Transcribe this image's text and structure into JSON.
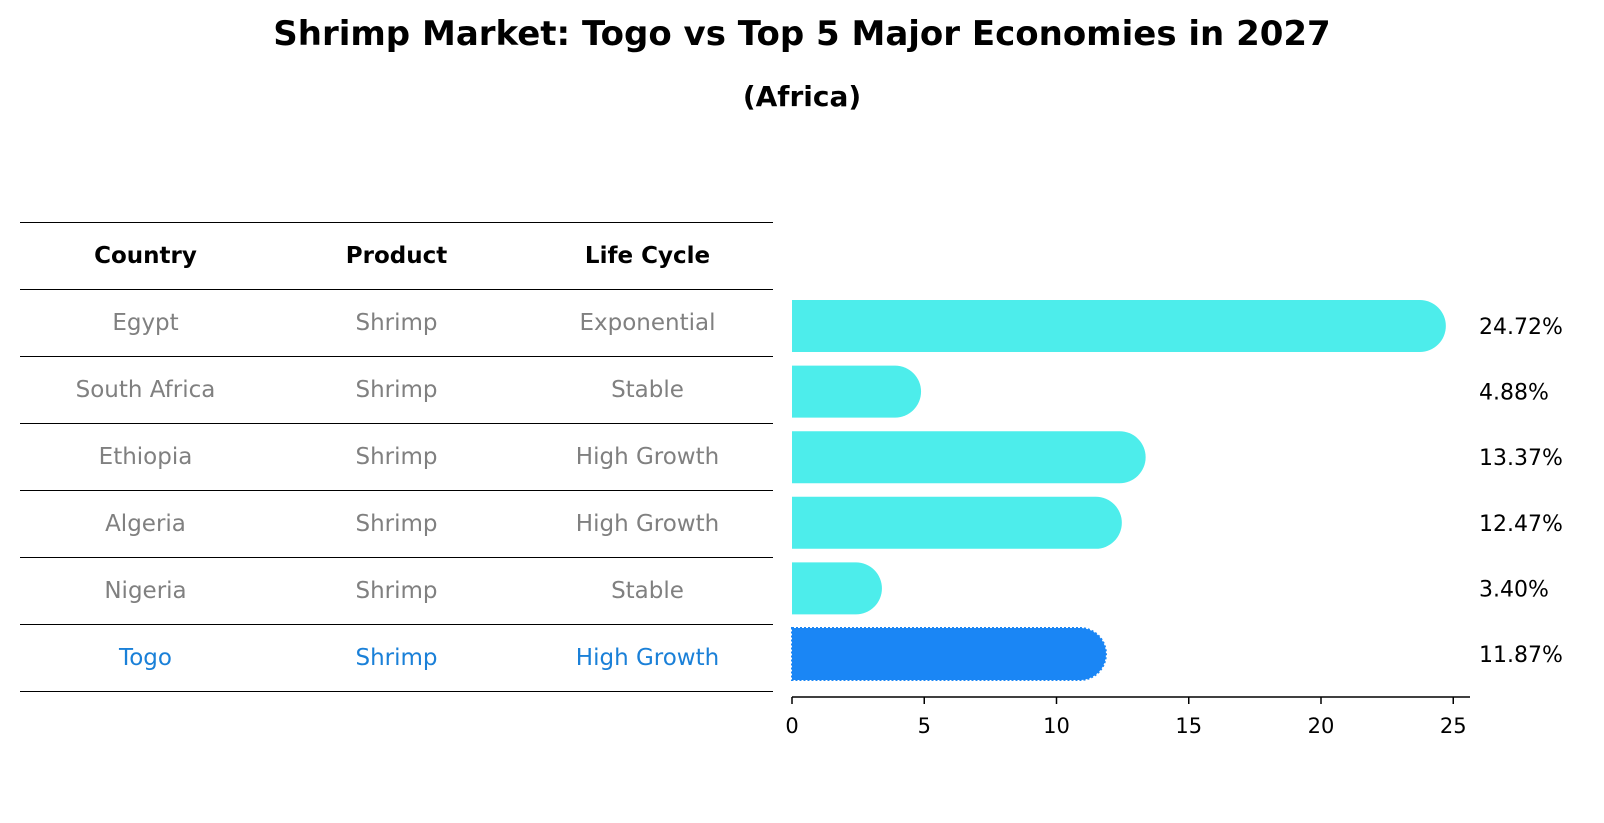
{
  "title": "Shrimp Market: Togo vs Top 5 Major Economies in 2027",
  "subtitle": "(Africa)",
  "table": {
    "headers": [
      "Country",
      "Product",
      "Life Cycle"
    ],
    "rows": [
      {
        "country": "Egypt",
        "product": "Shrimp",
        "life_cycle": "Exponential"
      },
      {
        "country": "South Africa",
        "product": "Shrimp",
        "life_cycle": "Stable"
      },
      {
        "country": "Ethiopia",
        "product": "Shrimp",
        "life_cycle": "High Growth"
      },
      {
        "country": "Algeria",
        "product": "Shrimp",
        "life_cycle": "High Growth"
      },
      {
        "country": "Nigeria",
        "product": "Shrimp",
        "life_cycle": "Stable"
      },
      {
        "country": "Togo",
        "product": "Shrimp",
        "life_cycle": "High Growth"
      }
    ]
  },
  "colors": {
    "bar": "#4dedeb",
    "highlight_bar": "#1a86f5",
    "highlight_text": "#1a80d8",
    "muted_text": "#808080"
  },
  "chart_data": {
    "type": "bar",
    "orientation": "horizontal",
    "title": "Shrimp Market: Togo vs Top 5 Major Economies in 2027",
    "subtitle": "(Africa)",
    "categories": [
      "Egypt",
      "South Africa",
      "Ethiopia",
      "Algeria",
      "Nigeria",
      "Togo"
    ],
    "values": [
      24.72,
      4.88,
      13.37,
      12.47,
      3.4,
      11.87
    ],
    "value_labels": [
      "24.72%",
      "4.88%",
      "13.37%",
      "12.47%",
      "3.40%",
      "11.87%"
    ],
    "highlight": "Togo",
    "xlim": [
      0,
      26
    ],
    "xticks": [
      0,
      5,
      10,
      15,
      20,
      25
    ],
    "xlabel": "",
    "ylabel": "",
    "grid": false
  }
}
